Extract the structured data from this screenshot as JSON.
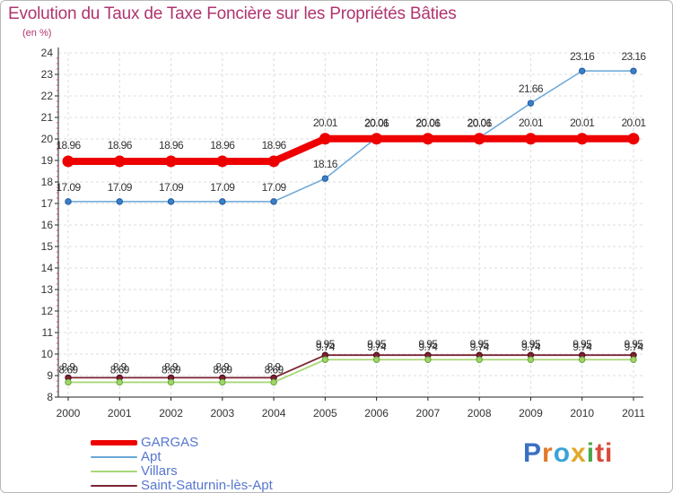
{
  "title": "Evolution du Taux de Taxe Foncière sur les Propriétés Bâties",
  "unit_label": "(en %)",
  "brand": [
    "P",
    "r",
    "o",
    "x",
    "i",
    "ti"
  ],
  "chart_data": {
    "type": "line",
    "title": "Evolution du Taux de Taxe Foncière sur les Propriétés Bâties",
    "ylabel": "(en %)",
    "xlabel": "",
    "ylim": [
      8,
      24
    ],
    "yticks": [
      "8",
      "9",
      "10",
      "11",
      "12",
      "13",
      "14",
      "15",
      "16",
      "17",
      "18",
      "19",
      "20",
      "21",
      "22",
      "23",
      "24"
    ],
    "categories": [
      "2000",
      "2001",
      "2002",
      "2003",
      "2004",
      "2005",
      "2006",
      "2007",
      "2008",
      "2009",
      "2010",
      "2011"
    ],
    "series": [
      {
        "name": "Saint-Saturnin-lès-Apt",
        "color": "#7b2434",
        "values": [
          8.9,
          8.9,
          8.9,
          8.9,
          8.9,
          9.95,
          9.95,
          9.95,
          9.95,
          9.95,
          9.95,
          9.95
        ],
        "labels": [
          "8.9",
          "8.9",
          "8.9",
          "8.9",
          "8.9",
          "9.95",
          "9.95",
          "9.95",
          "9.95",
          "9.95",
          "9.95",
          "9.95"
        ]
      },
      {
        "name": "Villars",
        "color": "#a8d878",
        "values": [
          8.69,
          8.69,
          8.69,
          8.69,
          8.69,
          9.74,
          9.74,
          9.74,
          9.74,
          9.74,
          9.74,
          9.74
        ],
        "labels": [
          "8.69",
          "8.69",
          "8.69",
          "8.69",
          "8.69",
          "9.74",
          "9.74",
          "9.74",
          "9.74",
          "9.74",
          "9.74",
          "9.74"
        ]
      },
      {
        "name": "Apt",
        "color": "#6aa6d8",
        "values": [
          17.09,
          17.09,
          17.09,
          17.09,
          17.09,
          18.16,
          20.06,
          20.06,
          20.06,
          21.66,
          23.16,
          23.16
        ],
        "labels": [
          "17.09",
          "17.09",
          "17.09",
          "17.09",
          "17.09",
          "18.16",
          "20.06",
          "20.06",
          "20.06",
          "21.66",
          "23.16",
          "23.16"
        ]
      },
      {
        "name": "GARGAS",
        "color": "#ee0000",
        "values": [
          18.96,
          18.96,
          18.96,
          18.96,
          18.96,
          20.01,
          20.01,
          20.01,
          20.01,
          20.01,
          20.01,
          20.01
        ],
        "labels": [
          "18.96",
          "18.96",
          "18.96",
          "18.96",
          "18.96",
          "20.01",
          "20.01",
          "20.01",
          "20.01",
          "20.01",
          "20.01",
          "20.01"
        ]
      }
    ],
    "legend": [
      "GARGAS",
      "Apt",
      "Villars",
      "Saint-Saturnin-lès-Apt"
    ],
    "legend_position": "bottom-left"
  }
}
